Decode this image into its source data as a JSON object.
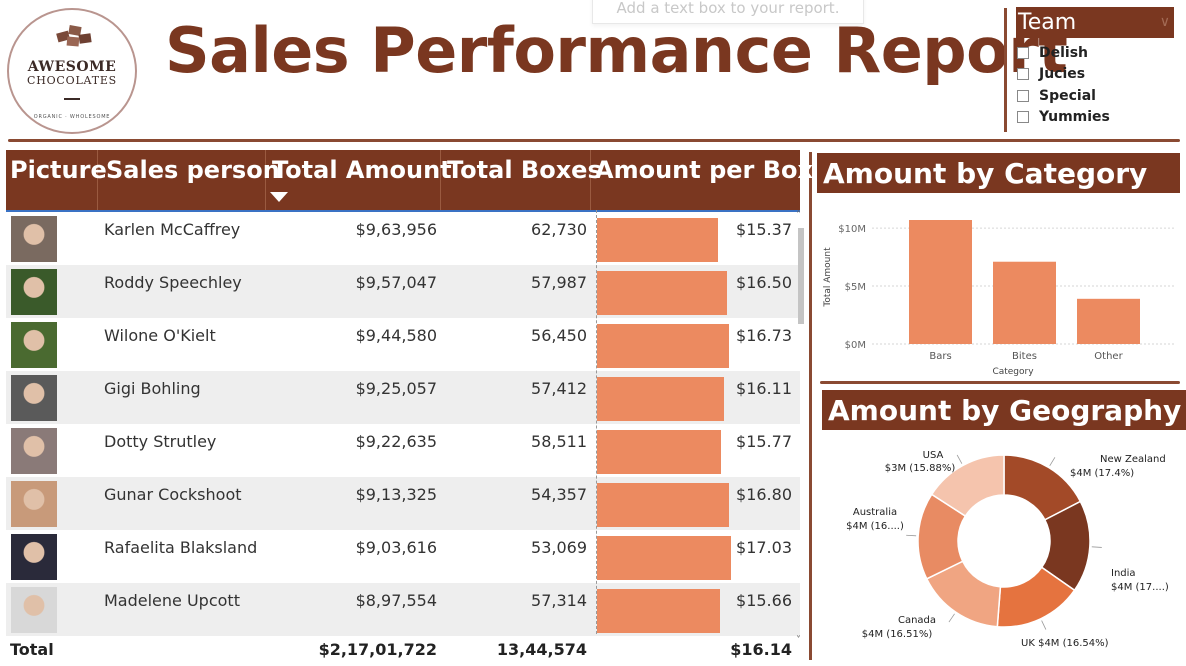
{
  "logo": {
    "line1": "AWESOME",
    "line2": "CHOCOLATES",
    "tagline": "ORGANIC · WHOLESOME"
  },
  "title": "Sales Performance Report",
  "ghost_textbox": "Add a text box to your report.",
  "team_filter": {
    "label": "Team",
    "items": [
      "Delish",
      "Jucies",
      "Special",
      "Yummies"
    ]
  },
  "table": {
    "columns": [
      "Picture",
      "Sales person",
      "Total Amount",
      "Total Boxes",
      "Amount per Box"
    ],
    "sorted_by": "Total Amount",
    "rows": [
      {
        "name": "Karlen McCaffrey",
        "amount": "$9,63,956",
        "boxes": "62,730",
        "per_box": "$15.37",
        "per_box_value": 15.37
      },
      {
        "name": "Roddy Speechley",
        "amount": "$9,57,047",
        "boxes": "57,987",
        "per_box": "$16.50",
        "per_box_value": 16.5
      },
      {
        "name": "Wilone O'Kielt",
        "amount": "$9,44,580",
        "boxes": "56,450",
        "per_box": "$16.73",
        "per_box_value": 16.73
      },
      {
        "name": "Gigi Bohling",
        "amount": "$9,25,057",
        "boxes": "57,412",
        "per_box": "$16.11",
        "per_box_value": 16.11
      },
      {
        "name": "Dotty Strutley",
        "amount": "$9,22,635",
        "boxes": "58,511",
        "per_box": "$15.77",
        "per_box_value": 15.77
      },
      {
        "name": "Gunar Cockshoot",
        "amount": "$9,13,325",
        "boxes": "54,357",
        "per_box": "$16.80",
        "per_box_value": 16.8
      },
      {
        "name": "Rafaelita Blaksland",
        "amount": "$9,03,616",
        "boxes": "53,069",
        "per_box": "$17.03",
        "per_box_value": 17.03
      },
      {
        "name": "Madelene Upcott",
        "amount": "$8,97,554",
        "boxes": "57,314",
        "per_box": "$15.66",
        "per_box_value": 15.66
      }
    ],
    "total": {
      "label": "Total",
      "amount": "$2,17,01,722",
      "boxes": "13,44,574",
      "per_box": "$16.14"
    }
  },
  "colors": {
    "brand": "#7a3720",
    "bar": "#ec8a60"
  },
  "chart_data": [
    {
      "type": "bar",
      "title": "Amount by Category",
      "categories": [
        "Bars",
        "Bites",
        "Other"
      ],
      "values": [
        10.7,
        7.1,
        3.9
      ],
      "xlabel": "Category",
      "ylabel": "Total Amount",
      "ylim": [
        0,
        10.7
      ],
      "yticks": [
        "$0M",
        "$5M",
        "$10M"
      ],
      "ytick_values": [
        0,
        5,
        10
      ],
      "grid": true
    },
    {
      "type": "pie",
      "title": "Amount by Geography",
      "donut": true,
      "slices": [
        {
          "label": "New Zealand",
          "value_label": "$4M (17.4%)",
          "percent": 17.4,
          "color": "#a34a28"
        },
        {
          "label": "India",
          "value_label": "$4M (17....)",
          "percent": 17.3,
          "color": "#7a3720"
        },
        {
          "label": "UK",
          "value_label": "$4M (16.54%)",
          "percent": 16.54,
          "color": "#e5733f"
        },
        {
          "label": "Canada",
          "value_label": "$4M (16.51%)",
          "percent": 16.51,
          "color": "#f0a582"
        },
        {
          "label": "Australia",
          "value_label": "$4M (16....)",
          "percent": 16.37,
          "color": "#e88b63"
        },
        {
          "label": "USA",
          "value_label": "$3M (15.88%)",
          "percent": 15.88,
          "color": "#f5c4ad"
        }
      ]
    }
  ]
}
